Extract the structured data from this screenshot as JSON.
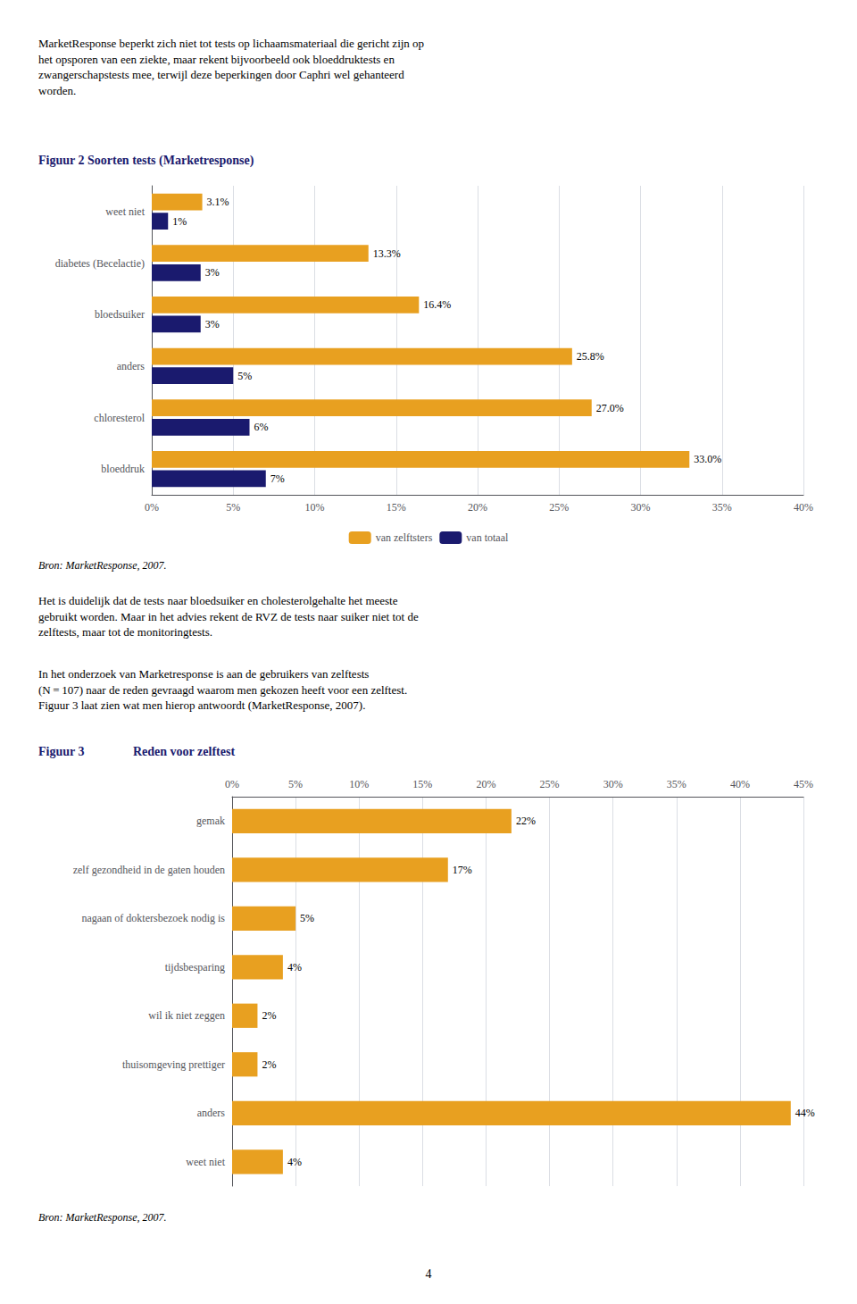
{
  "chart_data": [
    {
      "type": "bar",
      "orientation": "horizontal",
      "title": "Figuur 2  Soorten tests (Marketresponse)",
      "annotations": [
        "MarketResponse beperkt zich niet tot tests op lichaamsmateriaal die gericht zijn op\nhet opsporen van een ziekte, maar rekent bijvoorbeeld ook bloeddruktests en\nzwangerschapstests mee, terwijl deze beperkingen door Caphri wel gehanteerd\nworden.",
        "Bron: MarketResponse, 2007.",
        "Het is duidelijk dat de tests naar bloedsuiker en cholesterolgehalte het meeste\ngebruikt worden. Maar in het advies rekent de RVZ de tests naar suiker niet tot de\nzelftests, maar tot de monitoringtests.",
        "In het onderzoek van Marketresponse is aan de gebruikers van zelftests\n(N = 107) naar de reden gevraagd waarom men gekozen heeft voor een zelftest.\nFiguur 3 laat zien wat men hierop antwoordt (MarketResponse, 2007)."
      ],
      "categories": [
        "bloeddruk",
        "chloresterol",
        "anders",
        "bloedsuiker",
        "diabetes (Becelactie)",
        "weet niet"
      ],
      "series": [
        {
          "name": "van zelftsters",
          "color": "#e8a020",
          "values": [
            33.0,
            27.0,
            25.8,
            16.4,
            13.3,
            3.1
          ],
          "value_labels": [
            "33.0%",
            "27.0%",
            "25.8%",
            "16.4%",
            "13.3%",
            "3.1%"
          ]
        },
        {
          "name": "van totaal",
          "color": "#1a1a6e",
          "values": [
            7,
            6,
            5,
            3,
            3,
            1
          ],
          "value_labels": [
            "7%",
            "6%",
            "5%",
            "3%",
            "3%",
            "1%"
          ]
        }
      ],
      "xlim": [
        0,
        40
      ],
      "xticks": [
        {
          "value": 0,
          "label": "0%"
        },
        {
          "value": 5,
          "label": "5%"
        },
        {
          "value": 10,
          "label": "10%"
        },
        {
          "value": 15,
          "label": "15%"
        },
        {
          "value": 20,
          "label": "20%"
        },
        {
          "value": 25,
          "label": "25%"
        },
        {
          "value": 30,
          "label": "30%"
        },
        {
          "value": 35,
          "label": "35%"
        },
        {
          "value": 40,
          "label": "40%"
        }
      ],
      "grid": true,
      "legend": "bottom",
      "data_labels": true
    },
    {
      "type": "bar",
      "orientation": "horizontal",
      "title": "Figuur 3",
      "subtitle": "Reden voor zelftest",
      "annotations": [
        "Bron: MarketResponse, 2007.",
        "4"
      ],
      "categories": [
        "weet niet",
        "anders",
        "thuisomgeving prettiger",
        "wil ik niet zeggen",
        "tijdsbesparing",
        "nagaan of doktersbezoek nodig is",
        "zelf gezondheid in de gaten houden",
        "gemak"
      ],
      "values": [
        4,
        44,
        2,
        2,
        4,
        5,
        17,
        22
      ],
      "value_labels": [
        "4%",
        "44%",
        "2%",
        "2%",
        "4%",
        "5%",
        "17%",
        "22%"
      ],
      "color": "#e8a020",
      "xlim": [
        0,
        45
      ],
      "xticks": [
        {
          "value": 0,
          "label": "0%"
        },
        {
          "value": 5,
          "label": "5%"
        },
        {
          "value": 10,
          "label": "10%"
        },
        {
          "value": 15,
          "label": "15%"
        },
        {
          "value": 20,
          "label": "20%"
        },
        {
          "value": 25,
          "label": "25%"
        },
        {
          "value": 30,
          "label": "30%"
        },
        {
          "value": 35,
          "label": "35%"
        },
        {
          "value": 40,
          "label": "40%"
        },
        {
          "value": 45,
          "label": "45%"
        }
      ],
      "grid": true,
      "data_labels": true
    }
  ]
}
